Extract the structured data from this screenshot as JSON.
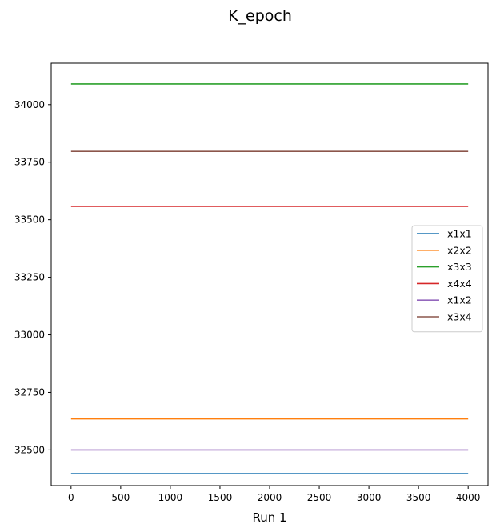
{
  "chart_data": {
    "type": "line",
    "title": "K_epoch",
    "xlabel": "Run 1",
    "ylabel": "",
    "xlim": [
      -200,
      4200
    ],
    "ylim": [
      32345,
      34180
    ],
    "xticks": [
      0,
      500,
      1000,
      1500,
      2000,
      2500,
      3000,
      3500,
      4000
    ],
    "yticks": [
      32500,
      32750,
      33000,
      33250,
      33500,
      33750,
      34000
    ],
    "grid": false,
    "legend_position": "center-right",
    "x": [
      0,
      4000
    ],
    "series": [
      {
        "name": "x1x1",
        "color": "#1f77b4",
        "values": [
          32397,
          32397
        ]
      },
      {
        "name": "x2x2",
        "color": "#ff7f0e",
        "values": [
          32635,
          32635
        ]
      },
      {
        "name": "x3x3",
        "color": "#2ca02c",
        "values": [
          34090,
          34090
        ]
      },
      {
        "name": "x4x4",
        "color": "#d62728",
        "values": [
          33558,
          33558
        ]
      },
      {
        "name": "x1x2",
        "color": "#9467bd",
        "values": [
          32500,
          32500
        ]
      },
      {
        "name": "x3x4",
        "color": "#8c564b",
        "values": [
          33797,
          33797
        ]
      }
    ]
  }
}
